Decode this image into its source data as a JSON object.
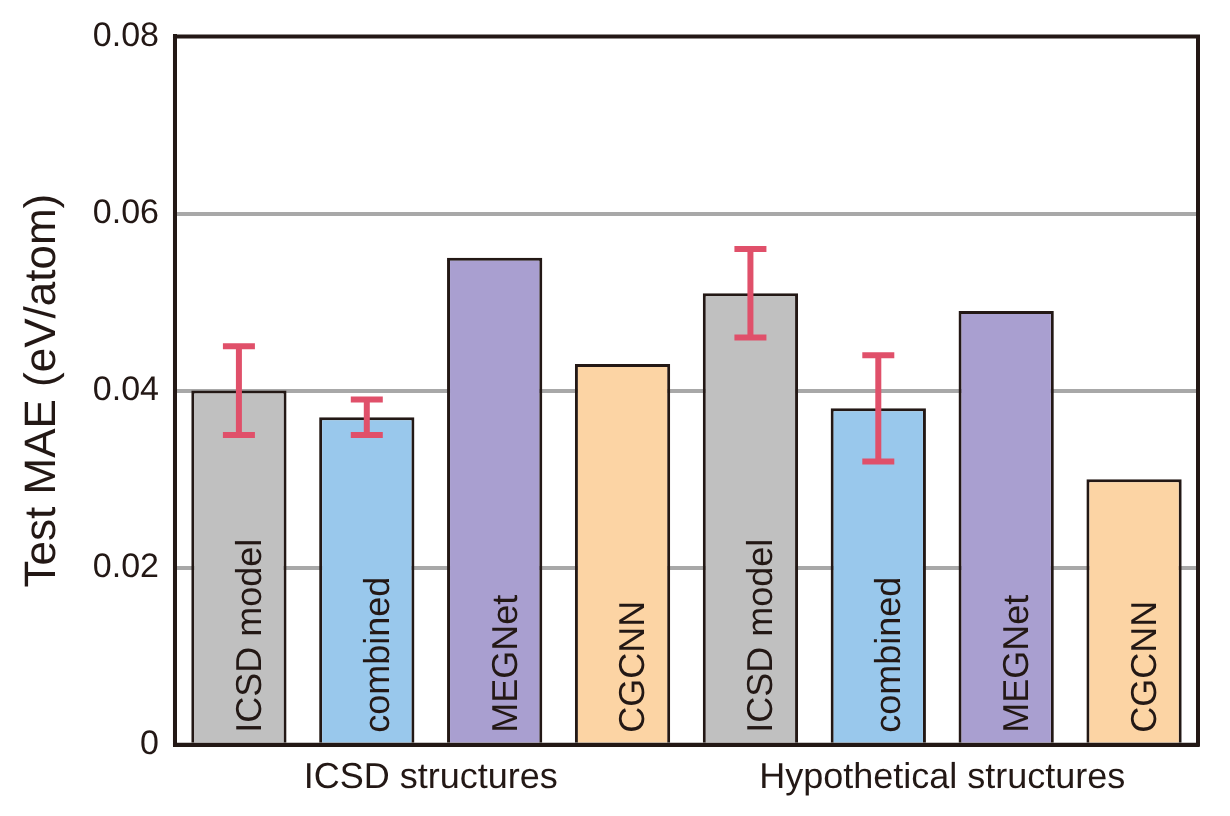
{
  "chart_data": {
    "type": "bar",
    "ylabel": "Test MAE (eV/atom)",
    "categories": [
      "ICSD structures",
      "Hypothetical structures"
    ],
    "series": [
      {
        "name": "ICSD model",
        "color": "#c0c0c0",
        "values": [
          0.04,
          0.051
        ],
        "errors": [
          [
            0.035,
            0.045
          ],
          [
            0.046,
            0.056
          ]
        ]
      },
      {
        "name": "combined",
        "color": "#99c8ec",
        "values": [
          0.037,
          0.038
        ],
        "errors": [
          [
            0.035,
            0.039
          ],
          [
            0.032,
            0.044
          ]
        ]
      },
      {
        "name": "MEGNet",
        "color": "#a99fd0",
        "values": [
          0.055,
          0.049
        ]
      },
      {
        "name": "CGCNN",
        "color": "#fcd4a4",
        "values": [
          0.043,
          0.03
        ]
      }
    ],
    "ylim": [
      0,
      0.08
    ],
    "yticks": [
      0,
      0.02,
      0.04,
      0.06,
      0.08
    ],
    "grid": "y",
    "legend": false
  }
}
